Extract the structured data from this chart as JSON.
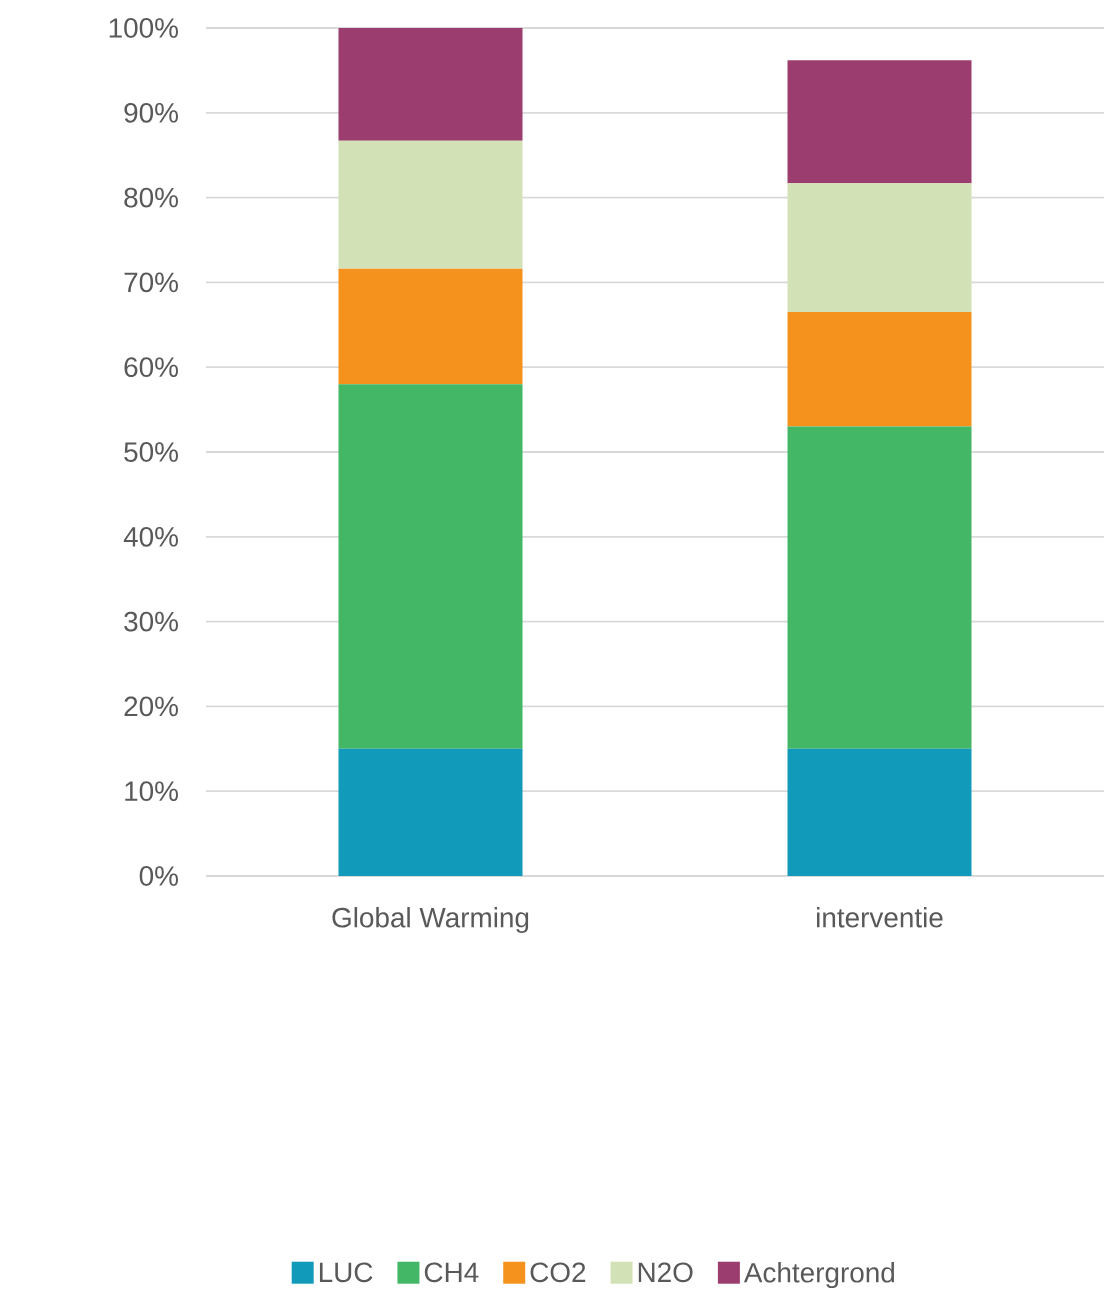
{
  "chart_data": {
    "type": "bar",
    "stacked": true,
    "categories": [
      "Global Warming",
      "interventie"
    ],
    "series": [
      {
        "name": "LUC",
        "color": "#119aba",
        "values": [
          15,
          15
        ]
      },
      {
        "name": "CH4",
        "color": "#44b766",
        "values": [
          43,
          38
        ]
      },
      {
        "name": "CO2",
        "color": "#f5921e",
        "values": [
          13.6,
          13.5
        ]
      },
      {
        "name": "N2O",
        "color": "#d3e1b6",
        "values": [
          15.1,
          15.2
        ]
      },
      {
        "name": "Achtergrond",
        "color": "#9b3d6e",
        "values": [
          13.3,
          14.5
        ]
      }
    ],
    "ylim": [
      0,
      100
    ],
    "yticks": [
      {
        "value": 0,
        "label": "0%"
      },
      {
        "value": 10,
        "label": "10%"
      },
      {
        "value": 20,
        "label": "20%"
      },
      {
        "value": 30,
        "label": "30%"
      },
      {
        "value": 40,
        "label": "40%"
      },
      {
        "value": 50,
        "label": "50%"
      },
      {
        "value": 60,
        "label": "60%"
      },
      {
        "value": 70,
        "label": "70%"
      },
      {
        "value": 80,
        "label": "80%"
      },
      {
        "value": 90,
        "label": "90%"
      },
      {
        "value": 100,
        "label": "100%"
      }
    ],
    "grid": "y",
    "legend": "bottom"
  }
}
